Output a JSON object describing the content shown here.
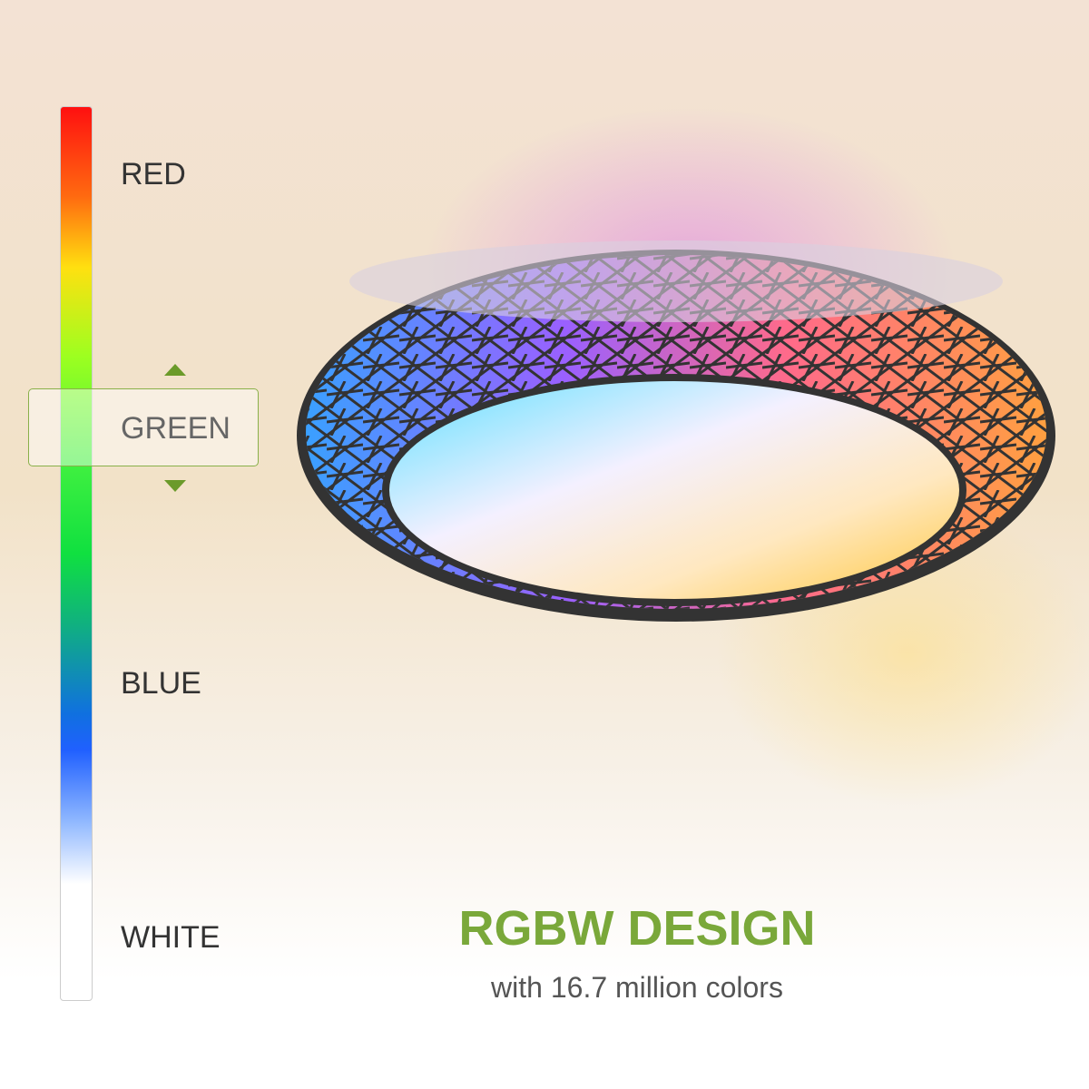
{
  "color_scale": {
    "labels": [
      "RED",
      "GREEN",
      "BLUE",
      "WHITE"
    ],
    "selected": "GREEN"
  },
  "headline": {
    "title": "RGBW DESIGN",
    "subtitle": "with 16.7 million colors"
  },
  "colors": {
    "accent": "#7aa83a",
    "text": "#333333"
  }
}
